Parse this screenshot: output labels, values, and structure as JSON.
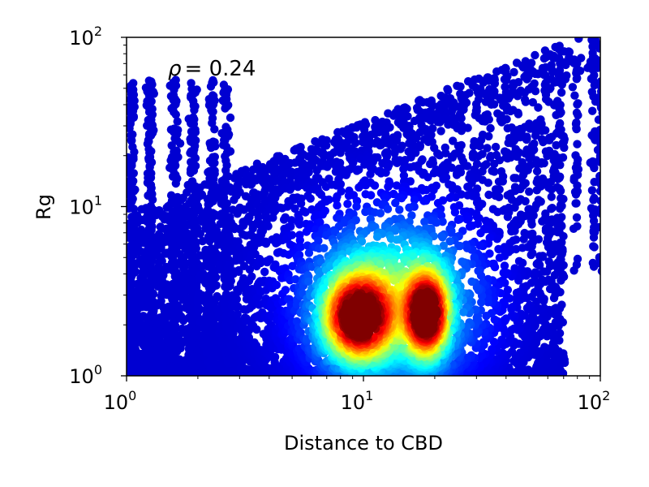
{
  "chart_data": {
    "type": "scatter",
    "xlabel": "Distance to CBD",
    "ylabel": "Rg",
    "xscale": "log",
    "yscale": "log",
    "xlim": [
      1,
      100
    ],
    "ylim": [
      1,
      100
    ],
    "x_ticks": [
      {
        "value": 1,
        "base": "10",
        "exp": "0"
      },
      {
        "value": 10,
        "base": "10",
        "exp": "1"
      },
      {
        "value": 100,
        "base": "10",
        "exp": "2"
      }
    ],
    "y_ticks": [
      {
        "value": 1,
        "base": "10",
        "exp": "0"
      },
      {
        "value": 10,
        "base": "10",
        "exp": "1"
      },
      {
        "value": 100,
        "base": "10",
        "exp": "2"
      }
    ],
    "colormap": "jet",
    "color_meaning": "point density",
    "annotation": {
      "symbol": "ρ",
      "text": "= 0.24",
      "value": 0.24
    },
    "density_peaks": [
      {
        "x": 9.5,
        "y": 2.2
      },
      {
        "x": 18.5,
        "y": 2.3
      }
    ],
    "point_cloud": {
      "x_range": [
        1,
        100
      ],
      "y_range": [
        1,
        100
      ],
      "upper_envelope_note": "Rg upper bound rises roughly with distance"
    },
    "grid": false,
    "legend": "none"
  }
}
